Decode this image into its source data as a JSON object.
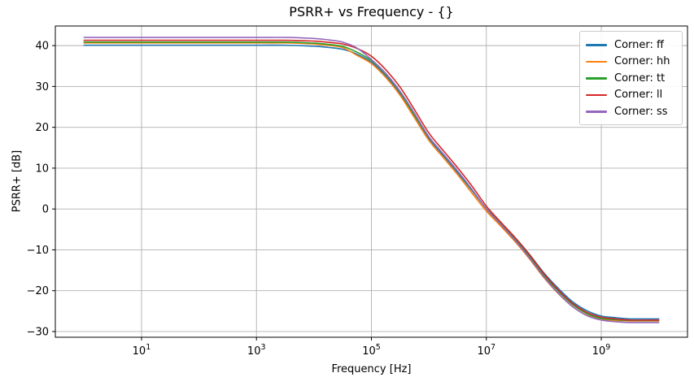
{
  "chart_data": {
    "type": "line",
    "title": "PSRR+ vs Frequency - {}",
    "xlabel": "Frequency [Hz]",
    "ylabel": "PSRR+ [dB]",
    "x_scale": "log",
    "xlim_log": [
      -0.5,
      10.5
    ],
    "ylim": [
      -31.4,
      44.8
    ],
    "x_tick_exponents": [
      1,
      3,
      5,
      7,
      9
    ],
    "x_tick_base": "10",
    "y_ticks": [
      40,
      30,
      20,
      10,
      0,
      -10,
      -20,
      -30
    ],
    "grid": true,
    "grid_color": "#b0b0b0",
    "axes_color": "#000000",
    "background_color": "#ffffff",
    "legend_position": "upper right",
    "x_log": [
      0,
      1,
      2,
      3,
      3.5,
      4,
      4.25,
      4.5,
      4.75,
      5,
      5.25,
      5.5,
      5.75,
      6,
      6.25,
      6.5,
      6.75,
      7,
      7.25,
      7.5,
      7.75,
      8,
      8.25,
      8.5,
      8.75,
      9,
      9.25,
      9.5,
      10
    ],
    "series": [
      {
        "id": "ff",
        "name": "Corner: ff",
        "color": "#1f77b4",
        "values": [
          40.1,
          40.1,
          40.1,
          40.1,
          40.1,
          39.85,
          39.55,
          39.1,
          37.9,
          35.9,
          32.6,
          28.2,
          22.8,
          17.3,
          13.1,
          8.9,
          4.5,
          0.1,
          -3.4,
          -7.0,
          -11.1,
          -15.6,
          -19.4,
          -22.7,
          -24.9,
          -26.2,
          -26.6,
          -26.9,
          -26.9
        ]
      },
      {
        "id": "hh",
        "name": "Corner: hh",
        "color": "#ff7f0e",
        "values": [
          40.65,
          40.65,
          40.65,
          40.65,
          40.65,
          40.4,
          40.05,
          39.5,
          37.6,
          35.6,
          32.2,
          27.8,
          22.3,
          16.8,
          12.6,
          8.4,
          3.9,
          -0.5,
          -4.2,
          -8.0,
          -12.2,
          -16.8,
          -20.7,
          -23.9,
          -26.0,
          -27.0,
          -27.3,
          -27.4,
          -27.4
        ]
      },
      {
        "id": "tt",
        "name": "Corner: tt",
        "color": "#2ca02c",
        "values": [
          40.85,
          40.85,
          40.85,
          40.85,
          40.85,
          40.6,
          40.3,
          39.8,
          38.4,
          36.3,
          33.0,
          28.6,
          23.0,
          17.6,
          13.4,
          9.2,
          4.7,
          0.1,
          -3.6,
          -7.4,
          -11.6,
          -16.2,
          -20.1,
          -23.4,
          -25.6,
          -26.8,
          -27.1,
          -27.3,
          -27.3
        ]
      },
      {
        "id": "ll",
        "name": "Corner: ll",
        "color": "#d62728",
        "values": [
          41.3,
          41.3,
          41.3,
          41.3,
          41.3,
          41.1,
          40.8,
          40.4,
          39.3,
          37.4,
          34.1,
          29.8,
          24.3,
          18.6,
          14.3,
          10.1,
          5.6,
          0.7,
          -3.2,
          -7.0,
          -11.2,
          -15.8,
          -19.8,
          -23.1,
          -25.3,
          -26.5,
          -26.9,
          -27.2,
          -27.2
        ]
      },
      {
        "id": "ss",
        "name": "Corner: ss",
        "color": "#9467bd",
        "values": [
          42.0,
          42.0,
          42.0,
          42.0,
          42.0,
          41.75,
          41.4,
          40.85,
          39.4,
          36.6,
          33.2,
          28.8,
          23.4,
          17.7,
          13.5,
          9.3,
          4.8,
          0.0,
          -3.8,
          -7.7,
          -12.0,
          -16.6,
          -20.6,
          -23.9,
          -26.1,
          -27.2,
          -27.6,
          -27.8,
          -27.8
        ]
      }
    ]
  }
}
